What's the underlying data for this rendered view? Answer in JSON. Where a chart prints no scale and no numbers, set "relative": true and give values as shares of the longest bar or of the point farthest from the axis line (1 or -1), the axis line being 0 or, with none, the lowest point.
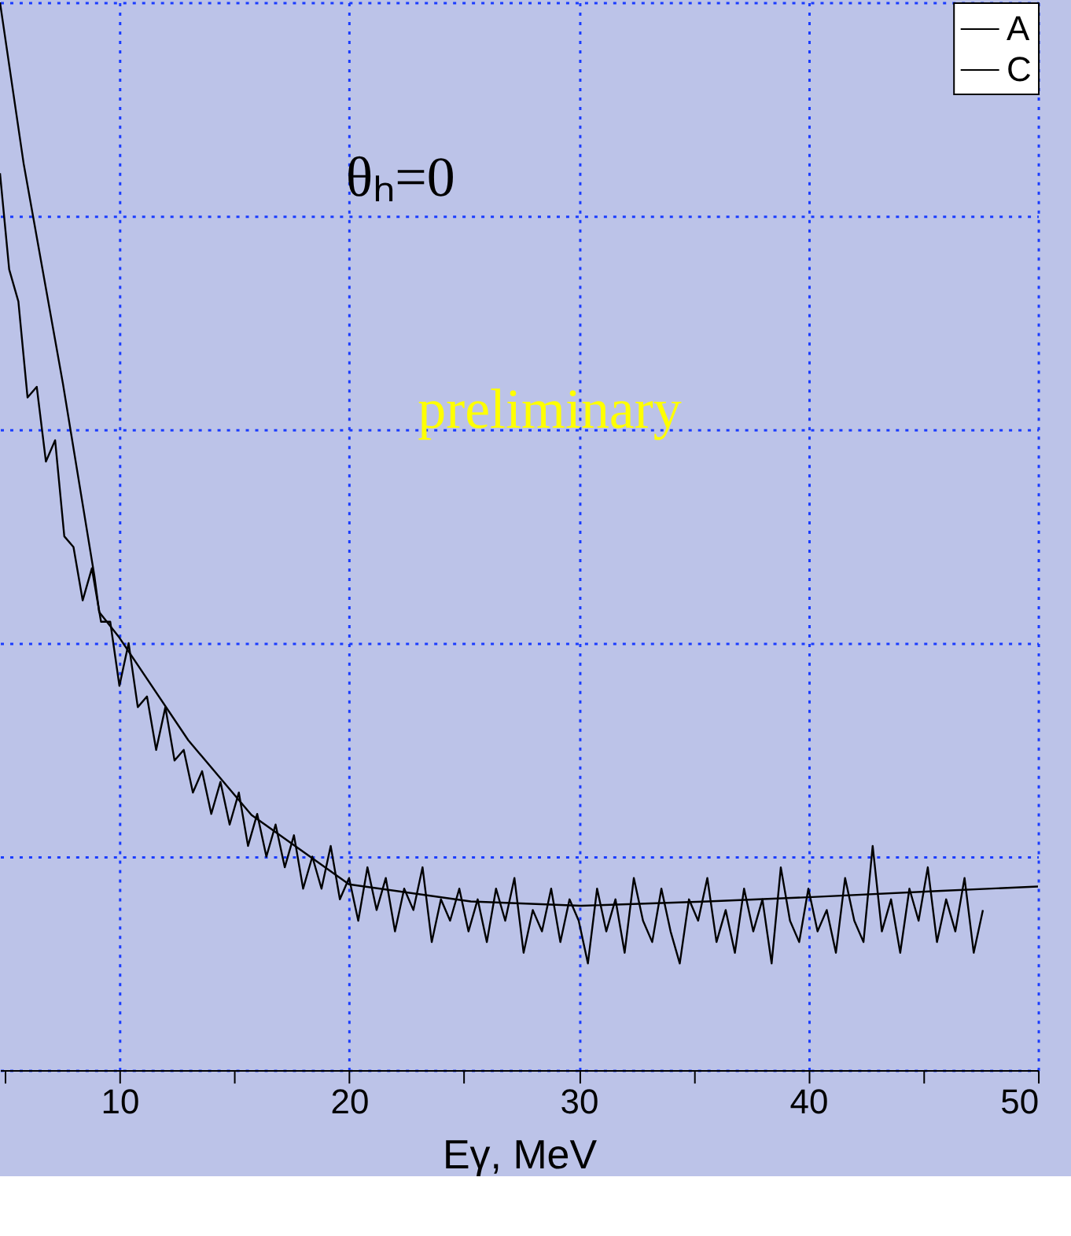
{
  "chart_data": {
    "type": "line",
    "relative": true,
    "xlabel": "Eγ, MeV",
    "annotations": [
      "θₕ=0",
      "preliminary"
    ],
    "xlim": [
      4.8,
      50
    ],
    "xticks": [
      {
        "value": 5,
        "label": null
      },
      10,
      {
        "value": 15,
        "label": null
      },
      20,
      {
        "value": 25,
        "label": null
      },
      30,
      {
        "value": 35,
        "label": null
      },
      40,
      {
        "value": 45,
        "label": null
      },
      50
    ],
    "grid": true,
    "legend": "top right",
    "tick_labels": "x",
    "line_style": "solid",
    "marker": "none",
    "series": [
      {
        "name": "A",
        "color": "#000000",
        "x": [
          4.8,
          5.2,
          5.6,
          6.0,
          6.4,
          6.8,
          7.2,
          7.6,
          8.0,
          8.4,
          8.8,
          9.2,
          9.6,
          10.0,
          10.4,
          10.8,
          11.2,
          11.6,
          12.0,
          12.4,
          12.8,
          13.2,
          13.6,
          14.0,
          14.4,
          14.8,
          15.2,
          15.6,
          16.0,
          16.4,
          16.8,
          17.2,
          17.6,
          18.0,
          18.4,
          18.8,
          19.2,
          19.6,
          20.0,
          20.4,
          20.8,
          21.2,
          21.6,
          22.0,
          22.4,
          22.8,
          23.2,
          23.6,
          24.0,
          24.4,
          24.8,
          25.2,
          25.6,
          26.0,
          26.4,
          26.8,
          27.2,
          27.6,
          28.0,
          28.4,
          28.8,
          29.2,
          29.6,
          30.0,
          30.4,
          30.8,
          31.2,
          31.6,
          32.0,
          32.4,
          32.8,
          33.2,
          33.6,
          34.0,
          34.4,
          34.8,
          35.2,
          35.6,
          36.0,
          36.4,
          36.8,
          37.2,
          37.6,
          38.0,
          38.4,
          38.8,
          39.2,
          39.6,
          40.0,
          40.4,
          40.8,
          41.2,
          41.6,
          42.0,
          42.4,
          42.8,
          43.2,
          43.6,
          44.0,
          44.4,
          44.8,
          45.2,
          45.6,
          46.0,
          46.4,
          46.8,
          47.2,
          47.6
        ],
        "values": [
          0.84,
          0.75,
          0.72,
          0.63,
          0.64,
          0.57,
          0.59,
          0.5,
          0.49,
          0.44,
          0.47,
          0.42,
          0.42,
          0.36,
          0.4,
          0.34,
          0.35,
          0.3,
          0.34,
          0.29,
          0.3,
          0.26,
          0.28,
          0.24,
          0.27,
          0.23,
          0.26,
          0.21,
          0.24,
          0.2,
          0.23,
          0.19,
          0.22,
          0.17,
          0.2,
          0.17,
          0.21,
          0.16,
          0.18,
          0.14,
          0.19,
          0.15,
          0.18,
          0.13,
          0.17,
          0.15,
          0.19,
          0.12,
          0.16,
          0.14,
          0.17,
          0.13,
          0.16,
          0.12,
          0.17,
          0.14,
          0.18,
          0.11,
          0.15,
          0.13,
          0.17,
          0.12,
          0.16,
          0.14,
          0.1,
          0.17,
          0.13,
          0.16,
          0.11,
          0.18,
          0.14,
          0.12,
          0.17,
          0.13,
          0.1,
          0.16,
          0.14,
          0.18,
          0.12,
          0.15,
          0.11,
          0.17,
          0.13,
          0.16,
          0.1,
          0.19,
          0.14,
          0.12,
          0.17,
          0.13,
          0.15,
          0.11,
          0.18,
          0.14,
          0.12,
          0.21,
          0.13,
          0.16,
          0.11,
          0.17,
          0.14,
          0.19,
          0.12,
          0.16,
          0.13,
          0.18,
          0.11,
          0.15
        ]
      },
      {
        "name": "C",
        "color": "#000000",
        "x": [
          4.8,
          5.83,
          7.54,
          8.91,
          9.12,
          10.0,
          13.0,
          15.75,
          20.0,
          25.3,
          30.1,
          35.6,
          40.0,
          45.8,
          50.0
        ],
        "values": [
          1.0,
          0.849,
          0.643,
          0.463,
          0.429,
          0.405,
          0.309,
          0.239,
          0.174,
          0.158,
          0.154,
          0.158,
          0.162,
          0.168,
          0.172
        ]
      }
    ]
  }
}
